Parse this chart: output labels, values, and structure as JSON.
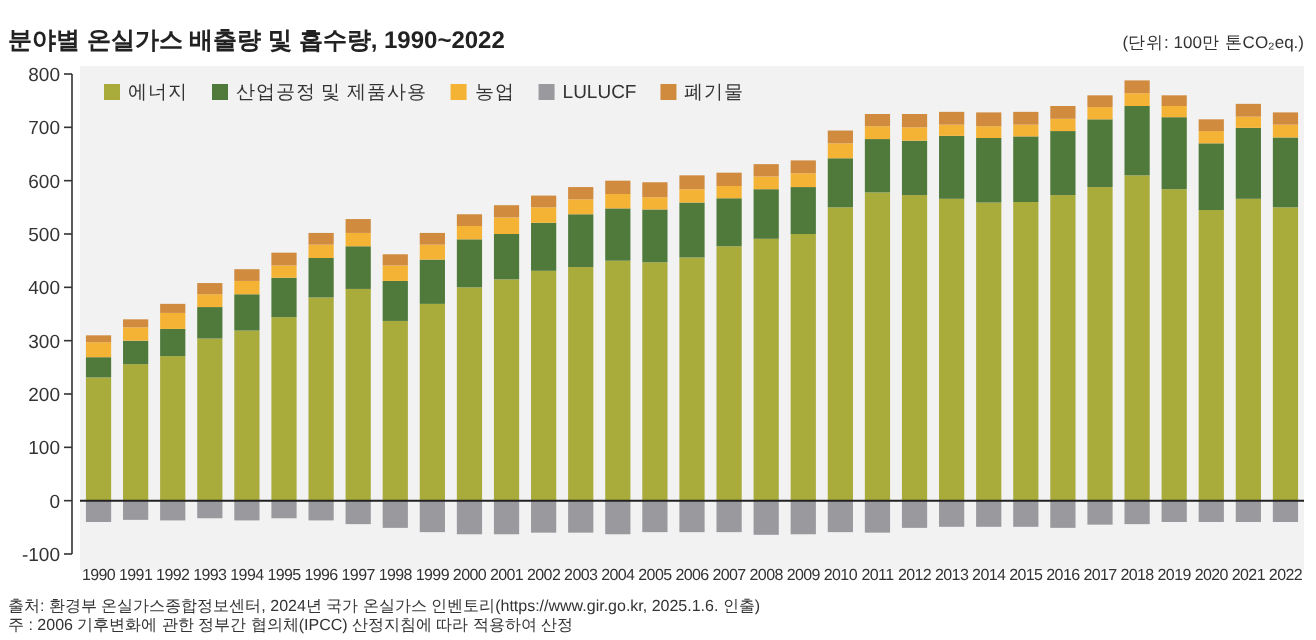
{
  "chart_data": {
    "type": "bar",
    "stacked": true,
    "title": "분야별 온실가스 배출량 및 흡수량, 1990~2022",
    "categories": [
      "1990",
      "1991",
      "1992",
      "1993",
      "1994",
      "1995",
      "1996",
      "1997",
      "1998",
      "1999",
      "2000",
      "2001",
      "2002",
      "2003",
      "2004",
      "2005",
      "2006",
      "2007",
      "2008",
      "2009",
      "2010",
      "2011",
      "2012",
      "2013",
      "2014",
      "2015",
      "2016",
      "2017",
      "2018",
      "2019",
      "2020",
      "2021",
      "2022"
    ],
    "series": [
      {
        "name": "에너지",
        "color": "#a9ab3b",
        "values": [
          231,
          256,
          271,
          304,
          319,
          344,
          381,
          397,
          337,
          369,
          400,
          415,
          431,
          438,
          450,
          447,
          456,
          477,
          491,
          500,
          550,
          578,
          573,
          566,
          559,
          560,
          573,
          588,
          610,
          584,
          545,
          566,
          550
        ]
      },
      {
        "name": "산업공정 및 제품사용",
        "color": "#4f7a3c",
        "values": [
          38,
          44,
          51,
          59,
          68,
          74,
          74,
          80,
          75,
          83,
          90,
          85,
          90,
          99,
          98,
          99,
          103,
          90,
          93,
          88,
          92,
          100,
          102,
          118,
          121,
          123,
          120,
          127,
          130,
          135,
          125,
          133,
          131
        ]
      },
      {
        "name": "농업",
        "color": "#f5b335",
        "values": [
          28,
          25,
          30,
          24,
          25,
          23,
          25,
          25,
          29,
          28,
          25,
          31,
          29,
          28,
          27,
          23,
          25,
          23,
          24,
          26,
          28,
          24,
          25,
          21,
          22,
          22,
          23,
          23,
          24,
          21,
          23,
          21,
          24
        ]
      },
      {
        "name": "LULUCF",
        "color": "#9a9a9e",
        "values": [
          -40,
          -36,
          -37,
          -33,
          -37,
          -33,
          -37,
          -44,
          -51,
          -59,
          -63,
          -63,
          -60,
          -60,
          -63,
          -59,
          -59,
          -59,
          -64,
          -63,
          -59,
          -60,
          -51,
          -49,
          -49,
          -49,
          -51,
          -45,
          -44,
          -40,
          -40,
          -40,
          -40
        ]
      },
      {
        "name": "폐기물",
        "color": "#d18b3f",
        "values": [
          13,
          15,
          17,
          21,
          22,
          24,
          22,
          26,
          21,
          22,
          22,
          23,
          22,
          23,
          25,
          28,
          26,
          25,
          23,
          24,
          24,
          23,
          25,
          24,
          26,
          24,
          24,
          22,
          24,
          20,
          22,
          24,
          23
        ]
      }
    ],
    "ylim": [
      -100,
      800
    ],
    "yticks": [
      -100,
      0,
      100,
      200,
      300,
      400,
      500,
      600,
      700,
      800
    ],
    "grid": false,
    "legend": "top left",
    "ref_lines": [
      {
        "axis": "y",
        "value": 0,
        "color": "#222222"
      }
    ],
    "annotations": [
      "(단위: 100만 톤CO₂eq.)",
      "출처: 환경부 온실가스종합정보센터, 2024년 국가 온실가스 인벤토리(https://www.gir.go.kr, 2025.1.6. 인출)",
      "주 : 2006 기후변화에 관한 정부간 협의체(IPCC) 산정지침에 따라 적용하여 산정"
    ]
  }
}
